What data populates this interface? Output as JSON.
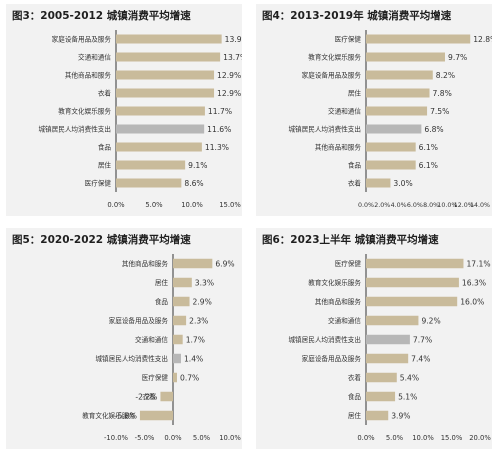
{
  "colors": {
    "bar": "#c9bb9b",
    "highlight_bar": "#b7b7b7",
    "axis": "#333333",
    "text": "#333333",
    "panel_bg": "#f2f2f2"
  },
  "chart_data": [
    {
      "type": "bar",
      "orientation": "horizontal",
      "title": "图3：2005-2012 城镇消费平均增速",
      "categories": [
        "家庭设备用品及服务",
        "交通和通信",
        "其他商品和服务",
        "衣着",
        "教育文化娱乐服务",
        "城镇居民人均消费性支出",
        "食品",
        "居住",
        "医疗保健"
      ],
      "values": [
        13.9,
        13.7,
        12.9,
        12.9,
        11.7,
        11.6,
        11.3,
        9.1,
        8.6
      ],
      "value_labels": [
        "13.9%",
        "13.7%",
        "12.9%",
        "12.9%",
        "11.7%",
        "11.6%",
        "11.3%",
        "9.1%",
        "8.6%"
      ],
      "highlight": "城镇居民人均消费性支出",
      "xlim": [
        0,
        15
      ],
      "xticks": [
        "0.0%",
        "5.0%",
        "10.0%",
        "15.0%"
      ],
      "xtick_values": [
        0,
        5,
        10,
        15
      ]
    },
    {
      "type": "bar",
      "orientation": "horizontal",
      "title": "图4：2013-2019年 城镇消费平均增速",
      "categories": [
        "医疗保健",
        "教育文化娱乐服务",
        "家庭设备用品及服务",
        "居住",
        "交通和通信",
        "城镇居民人均消费性支出",
        "其他商品和服务",
        "食品",
        "衣着"
      ],
      "values": [
        12.8,
        9.7,
        8.2,
        7.8,
        7.5,
        6.8,
        6.1,
        6.1,
        3.0
      ],
      "value_labels": [
        "12.8%",
        "9.7%",
        "8.2%",
        "7.8%",
        "7.5%",
        "6.8%",
        "6.1%",
        "6.1%",
        "3.0%"
      ],
      "highlight": "城镇居民人均消费性支出",
      "xlim": [
        0,
        14
      ],
      "xticks": [
        "0.0%",
        "2.0%",
        "4.0%",
        "6.0%",
        "8.0%",
        "10.0%",
        "12.0%",
        "14.0%"
      ],
      "xtick_values": [
        0,
        2,
        4,
        6,
        8,
        10,
        12,
        14
      ]
    },
    {
      "type": "bar",
      "orientation": "horizontal",
      "title": "图5：2020-2022 城镇消费平均增速",
      "categories": [
        "其他商品和服务",
        "居住",
        "食品",
        "家庭设备用品及服务",
        "交通和通信",
        "城镇居民人均消费性支出",
        "医疗保健",
        "衣着",
        "教育文化娱乐服务"
      ],
      "values": [
        6.9,
        3.3,
        2.9,
        2.3,
        1.7,
        1.4,
        0.7,
        -2.2,
        -5.8
      ],
      "value_labels": [
        "6.9%",
        "3.3%",
        "2.9%",
        "2.3%",
        "1.7%",
        "1.4%",
        "0.7%",
        "-2.2%",
        "-5.8%"
      ],
      "highlight": "城镇居民人均消费性支出",
      "xlim": [
        -10,
        10
      ],
      "xticks": [
        "-10.0%",
        "-5.0%",
        "0.0%",
        "5.0%",
        "10.0%"
      ],
      "xtick_values": [
        -10,
        -5,
        0,
        5,
        10
      ]
    },
    {
      "type": "bar",
      "orientation": "horizontal",
      "title": "图6：2023上半年 城镇消费平均增速",
      "categories": [
        "医疗保健",
        "教育文化娱乐服务",
        "其他商品和服务",
        "交通和通信",
        "城镇居民人均消费性支出",
        "家庭设备用品及服务",
        "衣着",
        "食品",
        "居住"
      ],
      "values": [
        17.1,
        16.3,
        16.0,
        9.2,
        7.7,
        7.4,
        5.4,
        5.1,
        3.9
      ],
      "value_labels": [
        "17.1%",
        "16.3%",
        "16.0%",
        "9.2%",
        "7.7%",
        "7.4%",
        "5.4%",
        "5.1%",
        "3.9%"
      ],
      "highlight": "城镇居民人均消费性支出",
      "xlim": [
        0,
        20
      ],
      "xticks": [
        "0.0%",
        "5.0%",
        "10.0%",
        "15.0%",
        "20.0%"
      ],
      "xtick_values": [
        0,
        5,
        10,
        15,
        20
      ]
    }
  ]
}
